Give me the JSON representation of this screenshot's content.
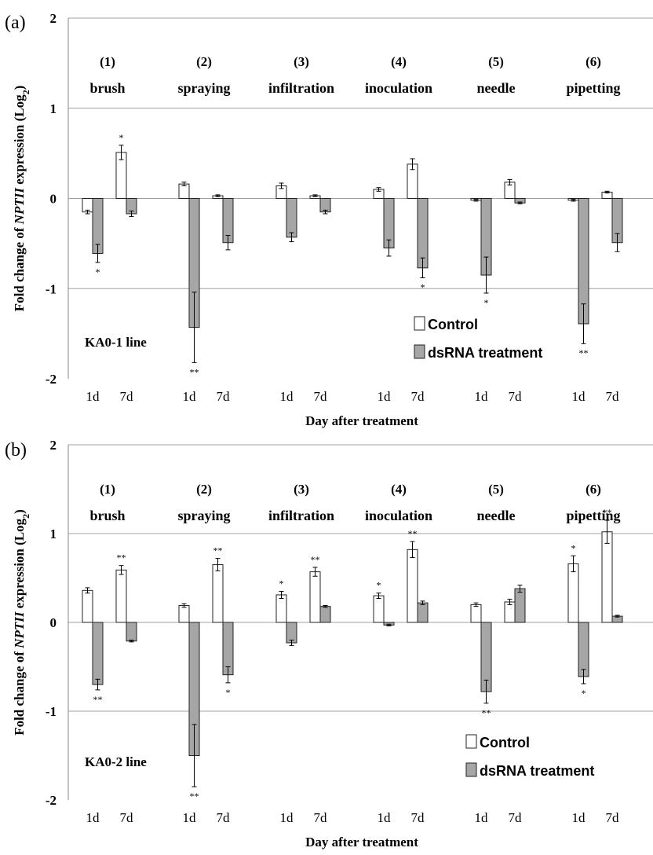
{
  "chart_data": [
    {
      "type": "bar",
      "panel_label": "(a)",
      "line_label": "KA0-1 line",
      "ylabel": "Fold change of NPTII expression (Log2)",
      "xlabel": "Day after treatment",
      "ylim": [
        -2,
        2
      ],
      "yticks": [
        "2",
        "1",
        "0",
        "-1",
        "-2"
      ],
      "ytick_values": [
        2,
        1,
        0,
        -1,
        -2
      ],
      "grid": true,
      "legend_position": "bottom-right",
      "groups": [
        {
          "num": "(1)",
          "name": "brush"
        },
        {
          "num": "(2)",
          "name": "spraying"
        },
        {
          "num": "(3)",
          "name": "infiltration"
        },
        {
          "num": "(4)",
          "name": "inoculation"
        },
        {
          "num": "(5)",
          "name": "needle"
        },
        {
          "num": "(6)",
          "name": "pipetting"
        }
      ],
      "day_labels": [
        "1d",
        "7d"
      ],
      "series": [
        {
          "name": "Control",
          "color": "#ffffff",
          "values": [
            [
              -0.15,
              0.51
            ],
            [
              0.16,
              0.03
            ],
            [
              0.14,
              0.03
            ],
            [
              0.1,
              0.38
            ],
            [
              -0.02,
              0.18
            ],
            [
              -0.02,
              0.07
            ]
          ],
          "errors": [
            [
              0.02,
              0.08
            ],
            [
              0.02,
              0.01
            ],
            [
              0.03,
              0.01
            ],
            [
              0.02,
              0.06
            ],
            [
              0.01,
              0.03
            ],
            [
              0.01,
              0.01
            ]
          ],
          "sig": [
            [
              "",
              "*"
            ],
            [
              "",
              ""
            ],
            [
              "",
              ""
            ],
            [
              "",
              ""
            ],
            [
              "",
              ""
            ],
            [
              "",
              ""
            ]
          ]
        },
        {
          "name": "dsRNA treatment",
          "color": "#a6a6a6",
          "values": [
            [
              -0.61,
              -0.17
            ],
            [
              -1.43,
              -0.49
            ],
            [
              -0.43,
              -0.15
            ],
            [
              -0.55,
              -0.77
            ],
            [
              -0.85,
              -0.05
            ],
            [
              -1.39,
              -0.49
            ]
          ],
          "errors": [
            [
              0.1,
              0.03
            ],
            [
              0.39,
              0.08
            ],
            [
              0.05,
              0.02
            ],
            [
              0.09,
              0.11
            ],
            [
              0.2,
              0.01
            ],
            [
              0.22,
              0.1
            ]
          ],
          "sig": [
            [
              "*",
              ""
            ],
            [
              "**",
              ""
            ],
            [
              "",
              ""
            ],
            [
              "",
              "*"
            ],
            [
              "*",
              ""
            ],
            [
              "**",
              ""
            ]
          ]
        }
      ]
    },
    {
      "type": "bar",
      "panel_label": "(b)",
      "line_label": "KA0-2 line",
      "ylabel": "Fold change of NPTII expression (Log2)",
      "xlabel": "Day after treatment",
      "ylim": [
        -2,
        2
      ],
      "yticks": [
        "2",
        "1",
        "0",
        "-1",
        "-2"
      ],
      "ytick_values": [
        2,
        1,
        0,
        -1,
        -2
      ],
      "grid": true,
      "legend_position": "bottom-right",
      "groups": [
        {
          "num": "(1)",
          "name": "brush"
        },
        {
          "num": "(2)",
          "name": "spraying"
        },
        {
          "num": "(3)",
          "name": "infiltration"
        },
        {
          "num": "(4)",
          "name": "inoculation"
        },
        {
          "num": "(5)",
          "name": "needle"
        },
        {
          "num": "(6)",
          "name": "pipetting"
        }
      ],
      "day_labels": [
        "1d",
        "7d"
      ],
      "series": [
        {
          "name": "Control",
          "color": "#ffffff",
          "values": [
            [
              0.36,
              0.59
            ],
            [
              0.19,
              0.65
            ],
            [
              0.31,
              0.57
            ],
            [
              0.3,
              0.82
            ],
            [
              0.2,
              0.23
            ],
            [
              0.66,
              1.02
            ]
          ],
          "errors": [
            [
              0.03,
              0.05
            ],
            [
              0.02,
              0.07
            ],
            [
              0.04,
              0.05
            ],
            [
              0.03,
              0.09
            ],
            [
              0.02,
              0.03
            ],
            [
              0.09,
              0.13
            ]
          ],
          "sig": [
            [
              "",
              "**"
            ],
            [
              "",
              "**"
            ],
            [
              "*",
              "**"
            ],
            [
              "*",
              "**"
            ],
            [
              "",
              ""
            ],
            [
              "*",
              "**"
            ]
          ]
        },
        {
          "name": "dsRNA treatment",
          "color": "#a6a6a6",
          "values": [
            [
              -0.7,
              -0.21
            ],
            [
              -1.5,
              -0.59
            ],
            [
              -0.23,
              0.18
            ],
            [
              -0.03,
              0.22
            ],
            [
              -0.78,
              0.38
            ],
            [
              -0.61,
              0.07
            ]
          ],
          "errors": [
            [
              0.06,
              0.01
            ],
            [
              0.35,
              0.09
            ],
            [
              0.03,
              0.01
            ],
            [
              0.01,
              0.02
            ],
            [
              0.13,
              0.04
            ],
            [
              0.08,
              0.01
            ]
          ],
          "sig": [
            [
              "**",
              ""
            ],
            [
              "**",
              "*"
            ],
            [
              "",
              ""
            ],
            [
              "",
              ""
            ],
            [
              "**",
              ""
            ],
            [
              "*",
              ""
            ]
          ]
        }
      ]
    }
  ]
}
